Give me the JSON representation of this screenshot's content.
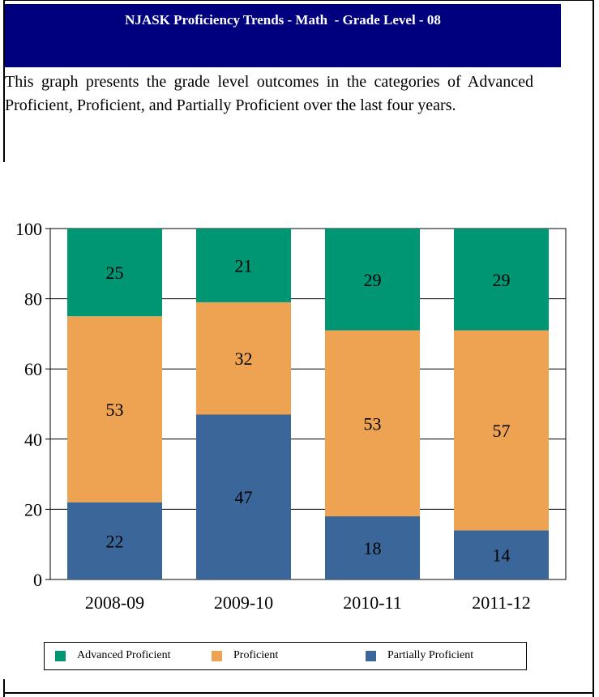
{
  "header": {
    "title": "NJASK Proficiency Trends - Math  - Grade Level - 08"
  },
  "description": "This graph presents the grade level outcomes in the categories of Advanced Proficient, Proficient, and Partially Proficient over the last four years.",
  "colors": {
    "header_background": "#00007f",
    "advanced_proficient": "#009673",
    "proficient": "#eea353",
    "partially_proficient": "#3b6699"
  },
  "legend": {
    "items": [
      {
        "label": "Advanced Proficient",
        "color": "#009673"
      },
      {
        "label": "Proficient",
        "color": "#eea353"
      },
      {
        "label": "Partially Proficient",
        "color": "#3b6699"
      }
    ]
  },
  "chart_data": {
    "type": "bar",
    "stacked": true,
    "categories": [
      "2008-09",
      "2009-10",
      "2010-11",
      "2011-12"
    ],
    "series": [
      {
        "name": "Partially Proficient",
        "color": "#3b6699",
        "values": [
          22,
          47,
          18,
          14
        ]
      },
      {
        "name": "Proficient",
        "color": "#eea353",
        "values": [
          53,
          32,
          53,
          57
        ]
      },
      {
        "name": "Advanced Proficient",
        "color": "#009673",
        "values": [
          25,
          21,
          29,
          29
        ]
      }
    ],
    "ylim": [
      0,
      100
    ],
    "yticks": [
      0,
      20,
      40,
      60,
      80,
      100
    ],
    "grid": true,
    "legend_position": "bottom"
  }
}
